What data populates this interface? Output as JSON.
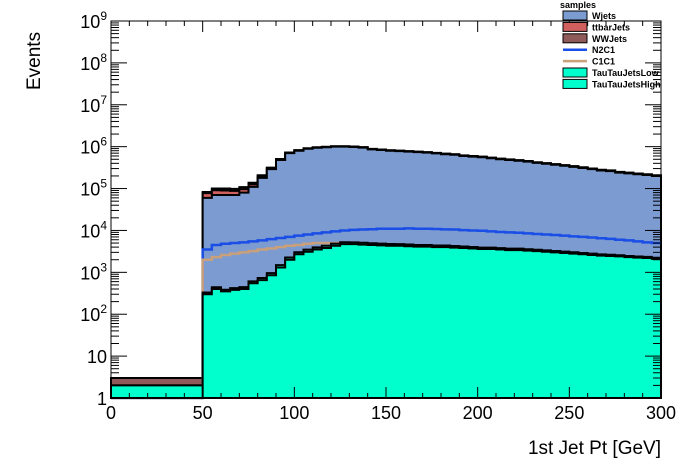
{
  "chart_data": {
    "type": "area",
    "stacked": true,
    "log_y": true,
    "xlabel": "1st Jet Pt [GeV]",
    "ylabel": "Events",
    "xlim": [
      0,
      300
    ],
    "ylim": [
      1,
      1000000000
    ],
    "legend_title": "samples",
    "legend_position": "top-right",
    "x_ticks": [
      "0",
      "50",
      "100",
      "150",
      "200",
      "250",
      "300"
    ],
    "y_ticks": [
      {
        "value": 1,
        "base": "1",
        "exp": ""
      },
      {
        "value": 10,
        "base": "10",
        "exp": ""
      },
      {
        "value": 100,
        "base": "10",
        "exp": "2"
      },
      {
        "value": 1000,
        "base": "10",
        "exp": "3"
      },
      {
        "value": 10000,
        "base": "10",
        "exp": "4"
      },
      {
        "value": 100000,
        "base": "10",
        "exp": "5"
      },
      {
        "value": 1000000,
        "base": "10",
        "exp": "6"
      },
      {
        "value": 10000000,
        "base": "10",
        "exp": "7"
      },
      {
        "value": 100000000,
        "base": "10",
        "exp": "8"
      },
      {
        "value": 1000000000,
        "base": "10",
        "exp": "9"
      }
    ],
    "bin_edges": [
      0,
      5,
      10,
      15,
      20,
      25,
      30,
      35,
      40,
      45,
      50,
      55,
      60,
      65,
      70,
      75,
      80,
      85,
      90,
      95,
      100,
      105,
      110,
      115,
      120,
      125,
      130,
      135,
      140,
      145,
      150,
      155,
      160,
      165,
      170,
      175,
      180,
      185,
      190,
      195,
      200,
      205,
      210,
      215,
      220,
      225,
      230,
      235,
      240,
      245,
      250,
      255,
      260,
      265,
      270,
      275,
      280,
      285,
      290,
      295,
      300
    ],
    "series": [
      {
        "name": "Wjets",
        "color": "#7b9bd1",
        "legend_kind": "fill",
        "values": [
          1,
          1,
          1,
          1,
          1,
          1,
          1,
          1,
          1,
          1,
          60000,
          70000,
          70000,
          70000,
          80000,
          110000,
          180000,
          290000,
          480000,
          700000,
          800000,
          890000,
          940000,
          970000,
          1000000,
          1000000,
          980000,
          950000,
          860000,
          830000,
          800000,
          780000,
          760000,
          740000,
          720000,
          690000,
          660000,
          640000,
          600000,
          580000,
          560000,
          530000,
          500000,
          480000,
          460000,
          440000,
          410000,
          390000,
          370000,
          350000,
          330000,
          310000,
          290000,
          270000,
          260000,
          240000,
          230000,
          220000,
          210000,
          200000
        ]
      },
      {
        "name": "ttbarJets",
        "color": "#d0605e",
        "legend_kind": "fill",
        "values": [
          1,
          1,
          1,
          1,
          1,
          1,
          1,
          1,
          1,
          1,
          18000,
          21000,
          20000,
          18000,
          17000,
          16000,
          15500,
          15000,
          14500,
          14000,
          13500,
          13500,
          13500,
          13500,
          14000,
          14500,
          15000,
          15000,
          15000,
          14500,
          14000,
          14000,
          13500,
          13500,
          13000,
          13000,
          12500,
          12500,
          12000,
          12000,
          11500,
          11000,
          11000,
          10500,
          10000,
          10000,
          9500,
          9000,
          9000,
          8500,
          8000,
          8000,
          7500,
          7500,
          7000,
          6700,
          6400,
          6100,
          5800,
          5500
        ]
      },
      {
        "name": "WWJets",
        "color": "#8e5a5a",
        "legend_kind": "fill",
        "values": [
          1,
          1,
          1,
          1,
          1,
          1,
          1,
          1,
          1,
          1,
          5000,
          9000,
          10000,
          10500,
          11000,
          11500,
          12000,
          12000,
          12500,
          12500,
          12500,
          12500,
          12500,
          12500,
          12000,
          12000,
          11500,
          11000,
          11000,
          10500,
          10000,
          10000,
          9500,
          9000,
          9000,
          8500,
          8000,
          8000,
          7500,
          7500,
          7000,
          7000,
          6500,
          6500,
          6000,
          6000,
          5500,
          5500,
          5000,
          5000,
          4800,
          4600,
          4400,
          4200,
          4000,
          3800,
          3600,
          3400,
          3200,
          3000
        ]
      }
    ],
    "overlays": [
      {
        "name": "N2C1",
        "color": "#1a4ee6",
        "legend_kind": "line",
        "values": [
          1,
          1,
          1,
          1,
          1,
          1,
          1,
          1,
          1,
          1,
          3500,
          4500,
          4800,
          5000,
          5200,
          5500,
          5800,
          6200,
          6600,
          7000,
          7500,
          8000,
          8500,
          9000,
          9500,
          10000,
          10300,
          10500,
          10700,
          11000,
          11000,
          11000,
          11200,
          11000,
          11000,
          10800,
          10600,
          10500,
          10200,
          10000,
          9800,
          9500,
          9200,
          9000,
          8800,
          8500,
          8200,
          8000,
          7800,
          7500,
          7200,
          7000,
          6800,
          6500,
          6300,
          6000,
          5800,
          5500,
          5200,
          5000
        ]
      },
      {
        "name": "C1C1",
        "color": "#c9a07a",
        "legend_kind": "line",
        "values": [
          1,
          1,
          1,
          1,
          1,
          1,
          1,
          1,
          1,
          1,
          2000,
          2300,
          2600,
          2800,
          3000,
          3200,
          3500,
          3700,
          4000,
          4300,
          4500,
          4800,
          5000,
          5000,
          5000,
          5000,
          5000,
          4900,
          4800,
          4700,
          4600,
          4500,
          4400,
          4300,
          4200,
          4100,
          4000,
          3900,
          3800,
          3700,
          3600,
          3500,
          3400,
          3300,
          3200,
          3100,
          3000,
          2900,
          2800,
          2700,
          2600,
          2500,
          2450,
          2400,
          2350,
          2300,
          2250,
          2200,
          2150,
          2100
        ]
      }
    ],
    "signal_stack": [
      {
        "name": "TauTauJetsLow",
        "color": "#00ffcc",
        "legend_kind": "fill",
        "values": [
          1,
          1,
          1,
          1,
          1,
          1,
          1,
          1,
          1,
          1,
          300,
          400,
          350,
          380,
          400,
          550,
          650,
          850,
          1300,
          2000,
          2700,
          3100,
          3500,
          3800,
          4300,
          4700,
          4700,
          4600,
          4500,
          4400,
          4300,
          4300,
          4200,
          4100,
          4100,
          4000,
          4000,
          3900,
          3800,
          3700,
          3600,
          3600,
          3500,
          3400,
          3400,
          3300,
          3200,
          3100,
          3000,
          2900,
          2800,
          2700,
          2600,
          2500,
          2450,
          2400,
          2300,
          2250,
          2200,
          2100
        ]
      },
      {
        "name": "TauTauJetsHigh",
        "color": "#00ffcc",
        "legend_kind": "fill",
        "values": [
          1,
          1,
          1,
          1,
          1,
          1,
          1,
          1,
          1,
          1,
          30,
          40,
          35,
          40,
          45,
          60,
          80,
          110,
          190,
          260,
          320,
          380,
          450,
          500,
          540,
          530,
          500,
          480,
          460,
          440,
          440,
          420,
          410,
          400,
          380,
          370,
          360,
          350,
          340,
          330,
          300,
          300,
          290,
          280,
          270,
          260,
          250,
          240,
          230,
          220,
          210,
          200,
          190,
          180,
          170,
          160,
          150,
          145,
          140,
          130
        ]
      }
    ]
  }
}
